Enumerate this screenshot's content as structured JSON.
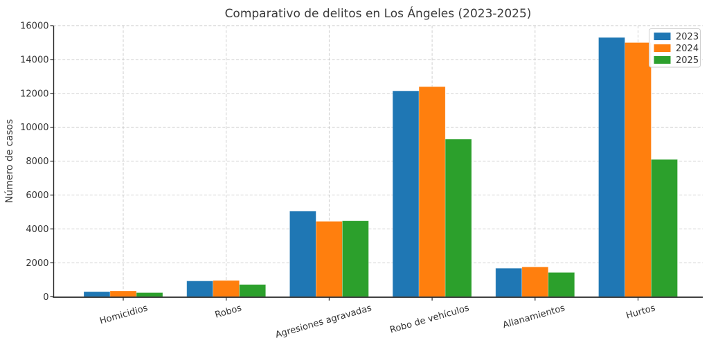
{
  "chart_data": {
    "type": "bar",
    "title": "Comparativo de delitos en Los Ángeles (2023-2025)",
    "xlabel": "",
    "ylabel": "Número de casos",
    "categories": [
      "Homicidios",
      "Robos",
      "Agresiones agravadas",
      "Robo de vehículos",
      "Allanamientos",
      "Hurtos"
    ],
    "series": [
      {
        "name": "2023",
        "color": "#1f77b4",
        "values": [
          300,
          930,
          5050,
          12150,
          1680,
          15300
        ]
      },
      {
        "name": "2024",
        "color": "#ff7f0e",
        "values": [
          340,
          960,
          4450,
          12400,
          1760,
          15000
        ]
      },
      {
        "name": "2025",
        "color": "#2ca02c",
        "values": [
          240,
          720,
          4480,
          9300,
          1430,
          8100
        ]
      }
    ],
    "ylim": [
      0,
      16000
    ],
    "ytick_step": 2000,
    "ytick_labels": [
      "0",
      "2000",
      "4000",
      "6000",
      "8000",
      "10000",
      "12000",
      "14000",
      "16000"
    ],
    "grid": true,
    "grid_style": "dashed",
    "legend_position": "upper right",
    "legend_labels": [
      "2023",
      "2024",
      "2025"
    ]
  },
  "style": {
    "grid_color": "#c9c9c9",
    "spine_color": "#262626",
    "text_color": "#333333",
    "legend_border_color": "#cccccc",
    "background_color": "#ffffff"
  }
}
